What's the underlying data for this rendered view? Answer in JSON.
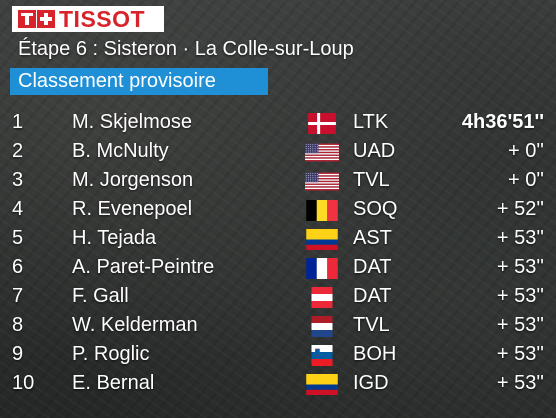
{
  "brand": {
    "logo_text": "TISSOT",
    "brand_color": "#d8232a"
  },
  "header": {
    "stage": "Étape 6 : Sisteron · La Colle-sur-Loup",
    "ranking_title": "Classement provisoire",
    "accent_color": "#1f8fd6"
  },
  "standings": [
    {
      "pos": "1",
      "name": "M. Skjelmose",
      "flag": "denmark",
      "team": "LTK",
      "time": "4h36'51''"
    },
    {
      "pos": "2",
      "name": "B. McNulty",
      "flag": "usa",
      "team": "UAD",
      "time": "+ 0''"
    },
    {
      "pos": "3",
      "name": "M. Jorgenson",
      "flag": "usa",
      "team": "TVL",
      "time": "+ 0''"
    },
    {
      "pos": "4",
      "name": "R. Evenepoel",
      "flag": "belgium",
      "team": "SOQ",
      "time": "+ 52''"
    },
    {
      "pos": "5",
      "name": "H. Tejada",
      "flag": "colombia",
      "team": "AST",
      "time": "+ 53''"
    },
    {
      "pos": "6",
      "name": "A. Paret-Peintre",
      "flag": "france",
      "team": "DAT",
      "time": "+ 53''"
    },
    {
      "pos": "7",
      "name": "F. Gall",
      "flag": "austria",
      "team": "DAT",
      "time": "+ 53''"
    },
    {
      "pos": "8",
      "name": "W. Kelderman",
      "flag": "netherlands",
      "team": "TVL",
      "time": "+ 53''"
    },
    {
      "pos": "9",
      "name": "P. Roglic",
      "flag": "slovenia",
      "team": "BOH",
      "time": "+ 53''"
    },
    {
      "pos": "10",
      "name": "E. Bernal",
      "flag": "colombia",
      "team": "IGD",
      "time": "+ 53''"
    }
  ]
}
